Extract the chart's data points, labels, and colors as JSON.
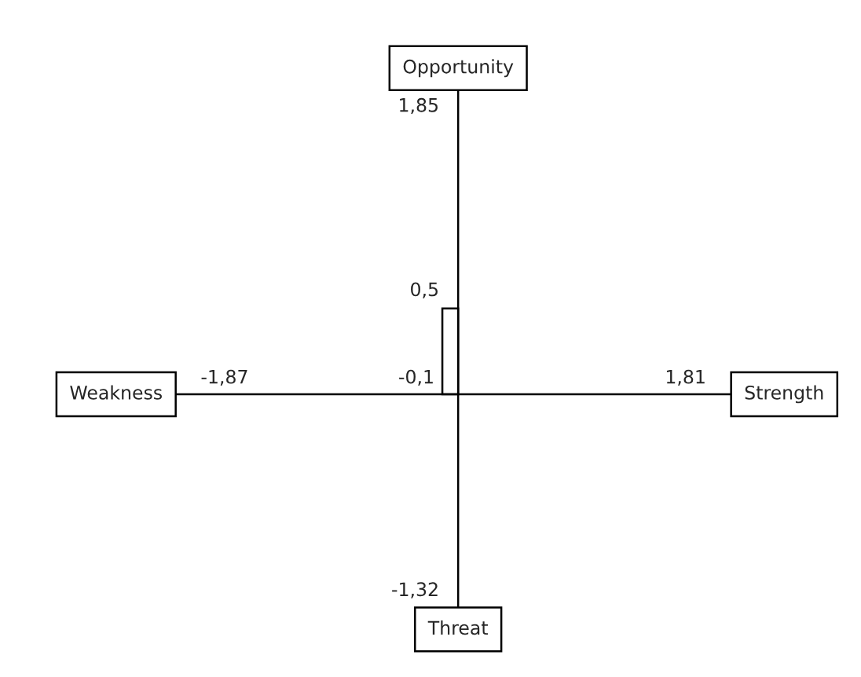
{
  "chart_data": {
    "type": "other",
    "categories": [
      "Strength",
      "Weakness",
      "Opportunity",
      "Threat"
    ],
    "series": [
      {
        "color": "#000000",
        "values": [
          1.81,
          -1.87,
          1.85,
          -1.32
        ],
        "value_labels": [
          "1,81",
          "-1,87",
          "1,85",
          "-1,32"
        ]
      },
      {
        "type": "scatter",
        "color": "#000000",
        "values": [
          null,
          -0.1,
          0.5,
          null
        ],
        "value_labels": [
          null,
          "-0,1",
          "0,5",
          null
        ]
      }
    ]
  }
}
